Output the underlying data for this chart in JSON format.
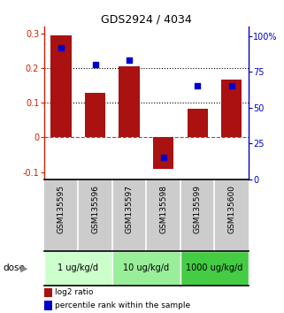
{
  "title": "GDS2924 / 4034",
  "samples": [
    "GSM135595",
    "GSM135596",
    "GSM135597",
    "GSM135598",
    "GSM135599",
    "GSM135600"
  ],
  "log2_ratio": [
    0.295,
    0.13,
    0.205,
    -0.09,
    0.082,
    0.168
  ],
  "percentile_rank": [
    92,
    80,
    83,
    15,
    65,
    65
  ],
  "bar_color": "#aa1111",
  "dot_color": "#0000cc",
  "ylim_left": [
    -0.12,
    0.32
  ],
  "ylim_right": [
    0,
    106.67
  ],
  "yticks_left": [
    -0.1,
    0.0,
    0.1,
    0.2,
    0.3
  ],
  "ytick_labels_left": [
    "-0.1",
    "0",
    "0.1",
    "0.2",
    "0.3"
  ],
  "yticks_right": [
    0,
    25,
    50,
    75,
    100
  ],
  "ytick_labels_right": [
    "0",
    "25",
    "50",
    "75",
    "100%"
  ],
  "hlines": [
    0.0,
    0.1,
    0.2
  ],
  "hline_styles": [
    "dashed",
    "dotted",
    "dotted"
  ],
  "hline_colors": [
    "#cc3333",
    "#000000",
    "#000000"
  ],
  "dose_groups": [
    {
      "label": "1 ug/kg/d",
      "indices": [
        0,
        1
      ],
      "color": "#ccffcc"
    },
    {
      "label": "10 ug/kg/d",
      "indices": [
        2,
        3
      ],
      "color": "#99ee99"
    },
    {
      "label": "1000 ug/kg/d",
      "indices": [
        4,
        5
      ],
      "color": "#44cc44"
    }
  ],
  "legend_red_label": "log2 ratio",
  "legend_blue_label": "percentile rank within the sample",
  "dose_label": "dose",
  "bar_width": 0.6,
  "figure_bg": "#ffffff",
  "plot_bg": "#ffffff",
  "left_label_color": "#cc2200",
  "right_label_color": "#0000cc",
  "sample_bg": "#cccccc",
  "sample_divider": "#aaaaaa"
}
